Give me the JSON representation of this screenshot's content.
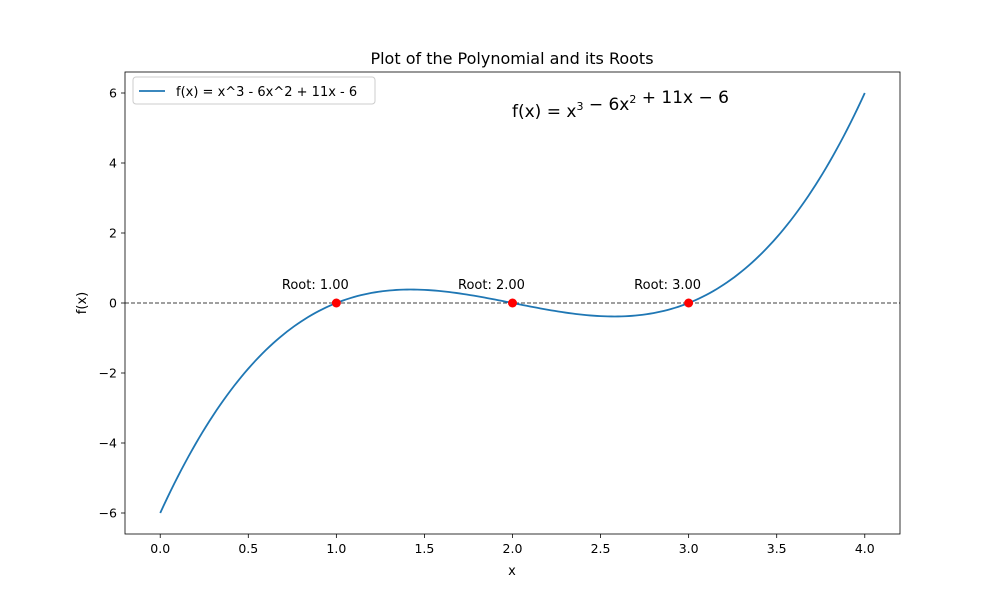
{
  "chart_data": {
    "type": "line",
    "title": "Plot of the Polynomial and its Roots",
    "xlabel": "x",
    "ylabel": "f(x)",
    "xlim": [
      -0.2,
      4.2
    ],
    "ylim": [
      -6.6,
      6.6
    ],
    "x_ticks": [
      0.0,
      0.5,
      1.0,
      1.5,
      2.0,
      2.5,
      3.0,
      3.5,
      4.0
    ],
    "x_tick_labels": [
      "0.0",
      "0.5",
      "1.0",
      "1.5",
      "2.0",
      "2.5",
      "3.0",
      "3.5",
      "4.0"
    ],
    "y_ticks": [
      -6,
      -4,
      -2,
      0,
      2,
      4,
      6
    ],
    "y_tick_labels": [
      "−6",
      "−4",
      "−2",
      "0",
      "2",
      "4",
      "6"
    ],
    "grid": false,
    "legend_position": "top-left",
    "series": [
      {
        "name": "f(x) = x^3 - 6x^2 + 11x - 6",
        "color": "#1f77b4",
        "function": "x^3 - 6x^2 + 11x - 6",
        "x_range": [
          0,
          4
        ],
        "samples": [
          [
            0,
            -6
          ],
          [
            0.5,
            -1.875
          ],
          [
            1,
            0
          ],
          [
            1.5,
            0.375
          ],
          [
            2,
            0
          ],
          [
            2.5,
            -0.375
          ],
          [
            3,
            0
          ],
          [
            3.5,
            1.875
          ],
          [
            4,
            6
          ]
        ]
      }
    ],
    "reference_line": {
      "y": 0,
      "style": "dashed",
      "color": "#000000"
    },
    "roots": [
      {
        "x": 1.0,
        "y": 0,
        "label": "Root: 1.00"
      },
      {
        "x": 2.0,
        "y": 0,
        "label": "Root: 2.00"
      },
      {
        "x": 3.0,
        "y": 0,
        "label": "Root: 3.00"
      }
    ],
    "root_marker_color": "#ff0000",
    "annotation": {
      "base": "f(x) = x",
      "parts": [
        {
          "text": "f(x) = x"
        },
        {
          "sup": "3"
        },
        {
          "text": " − 6x"
        },
        {
          "sup": "2"
        },
        {
          "text": " + 11x − 6"
        }
      ]
    }
  }
}
